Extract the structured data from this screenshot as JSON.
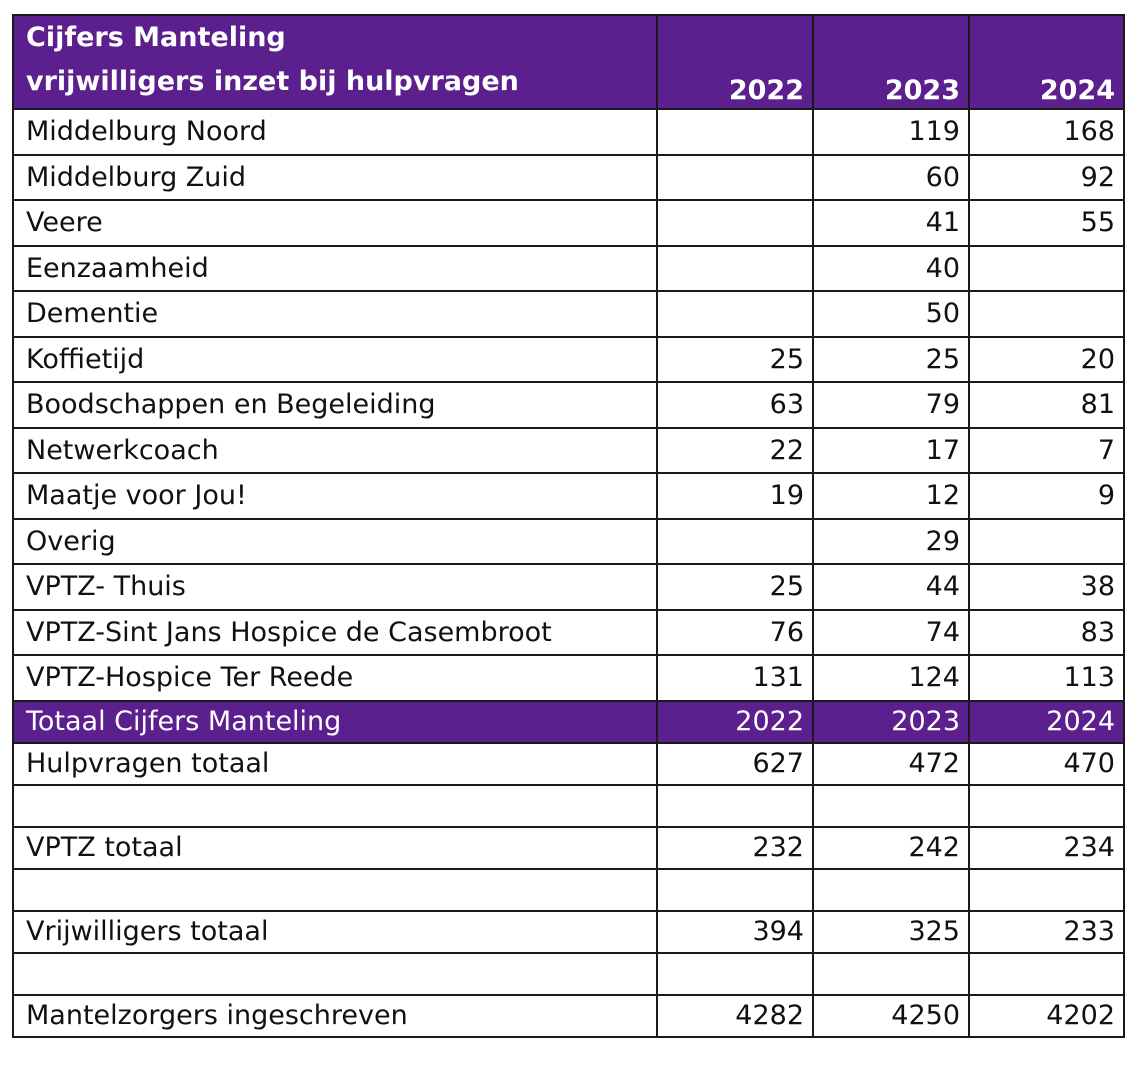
{
  "header": {
    "title_line1": "Cijfers Manteling",
    "title_line2": "vrijwilligers inzet bij hulpvragen",
    "years": [
      "2022",
      "2023",
      "2024"
    ]
  },
  "rows": [
    {
      "label": "Middelburg Noord",
      "v2022": "",
      "v2023": "119",
      "v2024": "168"
    },
    {
      "label": "Middelburg Zuid",
      "v2022": "",
      "v2023": "60",
      "v2024": "92"
    },
    {
      "label": "Veere",
      "v2022": "",
      "v2023": "41",
      "v2024": "55"
    },
    {
      "label": "Eenzaamheid",
      "v2022": "",
      "v2023": "40",
      "v2024": ""
    },
    {
      "label": "Dementie",
      "v2022": "",
      "v2023": "50",
      "v2024": ""
    },
    {
      "label": "Koffietijd",
      "v2022": "25",
      "v2023": "25",
      "v2024": "20"
    },
    {
      "label": "Boodschappen en Begeleiding",
      "v2022": "63",
      "v2023": "79",
      "v2024": "81"
    },
    {
      "label": "Netwerkcoach",
      "v2022": "22",
      "v2023": "17",
      "v2024": "7"
    },
    {
      "label": "Maatje voor Jou!",
      "v2022": "19",
      "v2023": "12",
      "v2024": "9"
    },
    {
      "label": "Overig",
      "v2022": "",
      "v2023": "29",
      "v2024": ""
    },
    {
      "label": "VPTZ- Thuis",
      "v2022": "25",
      "v2023": "44",
      "v2024": "38"
    },
    {
      "label": "VPTZ-Sint Jans Hospice de Casembroot",
      "v2022": "76",
      "v2023": "74",
      "v2024": "83"
    },
    {
      "label": "VPTZ-Hospice Ter Reede",
      "v2022": "131",
      "v2023": "124",
      "v2024": "113"
    }
  ],
  "totals_header": {
    "label": "Totaal Cijfers Manteling",
    "years": [
      "2022",
      "2023",
      "2024"
    ]
  },
  "totals": [
    {
      "label": "Hulpvragen totaal",
      "v2022": "627",
      "v2023": "472",
      "v2024": "470"
    },
    {
      "label": "VPTZ totaal",
      "v2022": "232",
      "v2023": "242",
      "v2024": "234"
    },
    {
      "label": "Vrijwilligers totaal",
      "v2022": "394",
      "v2023": "325",
      "v2024": "233"
    },
    {
      "label": "Mantelzorgers ingeschreven",
      "v2022": "4282",
      "v2023": "4250",
      "v2024": "4202"
    }
  ],
  "colors": {
    "header_bg": "#5b1f8e",
    "header_text": "#ffffff",
    "border": "#1a1a1a"
  }
}
